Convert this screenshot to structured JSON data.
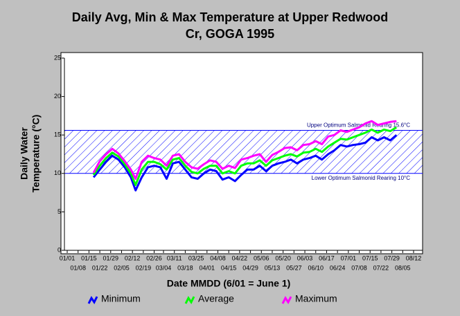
{
  "chart_data": {
    "type": "line",
    "title": [
      "Daily Avg, Min & Max Temperature at Upper Redwood",
      "Cr, GOGA 1995"
    ],
    "x_label": "Date MMDD (6/01 = June 1)",
    "y_label": [
      "Daily Water",
      "Temperature (°C)"
    ],
    "xlim": [
      "01/01",
      "08/12"
    ],
    "xticks": [
      "01/01",
      "01/08",
      "01/15",
      "01/22",
      "01/29",
      "02/05",
      "02/12",
      "02/19",
      "02/26",
      "03/04",
      "03/11",
      "03/18",
      "03/25",
      "04/01",
      "04/08",
      "04/15",
      "04/22",
      "04/29",
      "05/06",
      "05/13",
      "05/20",
      "05/27",
      "06/03",
      "06/10",
      "06/17",
      "06/24",
      "07/01",
      "07/08",
      "07/15",
      "07/22",
      "07/29",
      "08/05",
      "08/12"
    ],
    "ylim": [
      0,
      25
    ],
    "yticks": [
      0,
      5,
      10,
      15,
      20,
      25
    ],
    "band": {
      "lower": 10,
      "upper": 15.6,
      "color": "#0000ff",
      "lower_label": "Lower Optimum Salmonid Rearing 10°C",
      "upper_label": "Upper Optimum Salmonid Rearing 15.6°C"
    },
    "x": [
      "01/18",
      "01/22",
      "01/26",
      "01/30",
      "02/03",
      "02/07",
      "02/11",
      "02/14",
      "02/18",
      "02/22",
      "02/26",
      "03/02",
      "03/06",
      "03/10",
      "03/14",
      "03/18",
      "03/22",
      "03/26",
      "03/30",
      "04/03",
      "04/07",
      "04/11",
      "04/15",
      "04/19",
      "04/23",
      "04/27",
      "05/01",
      "05/05",
      "05/09",
      "05/13",
      "05/17",
      "05/21",
      "05/25",
      "05/29",
      "06/02",
      "06/06",
      "06/10",
      "06/14",
      "06/18",
      "06/22",
      "06/26",
      "06/30",
      "07/04",
      "07/08",
      "07/12",
      "07/16",
      "07/20",
      "07/24",
      "07/28",
      "08/01"
    ],
    "series": [
      {
        "name": "Minimum",
        "color": "#0000ff",
        "values": [
          9.5,
          10.5,
          11.5,
          12.3,
          11.8,
          10.8,
          9.5,
          7.8,
          9.5,
          10.8,
          11,
          10.8,
          9.3,
          11.3,
          11.5,
          10.5,
          9.5,
          9.3,
          10,
          10.5,
          10.3,
          9.2,
          9.5,
          9,
          9.8,
          10.5,
          10.5,
          11,
          10.3,
          11,
          11.3,
          11.5,
          11.8,
          11.3,
          11.8,
          12,
          12.3,
          11.8,
          12.5,
          13,
          13.7,
          13.5,
          13.7,
          13.8,
          14,
          14.7,
          14.3,
          14.7,
          14.3,
          15
        ]
      },
      {
        "name": "Average",
        "color": "#00ff00",
        "values": [
          9.8,
          11,
          12,
          12.7,
          12.2,
          11.2,
          10,
          8.5,
          10.5,
          11.5,
          11.5,
          11.2,
          10.5,
          11.8,
          12,
          11,
          10.2,
          10,
          10.6,
          11,
          11,
          10,
          10.3,
          10,
          11,
          11.3,
          11.3,
          11.7,
          11,
          11.7,
          12,
          12.3,
          12.5,
          12.2,
          12.7,
          12.8,
          13.2,
          12.8,
          13.5,
          14,
          14.5,
          14.4,
          14.7,
          15,
          15.3,
          15.7,
          15.3,
          15.7,
          15.5,
          16
        ]
      },
      {
        "name": "Maximum",
        "color": "#ff00ff",
        "values": [
          10.1,
          11.6,
          12.5,
          13.2,
          12.6,
          11.6,
          10.5,
          9.3,
          11.5,
          12.3,
          12,
          11.8,
          11,
          12.3,
          12.5,
          11.5,
          10.8,
          10.6,
          11.2,
          11.7,
          11.5,
          10.6,
          11,
          10.7,
          11.8,
          12,
          12.3,
          12.5,
          11.5,
          12.4,
          12.8,
          13.3,
          13.4,
          13,
          13.7,
          13.8,
          14.2,
          13.8,
          14.8,
          15,
          15.6,
          15.4,
          15.7,
          16,
          16.5,
          16.8,
          16.3,
          16.5,
          16.7,
          16.8
        ]
      }
    ]
  }
}
